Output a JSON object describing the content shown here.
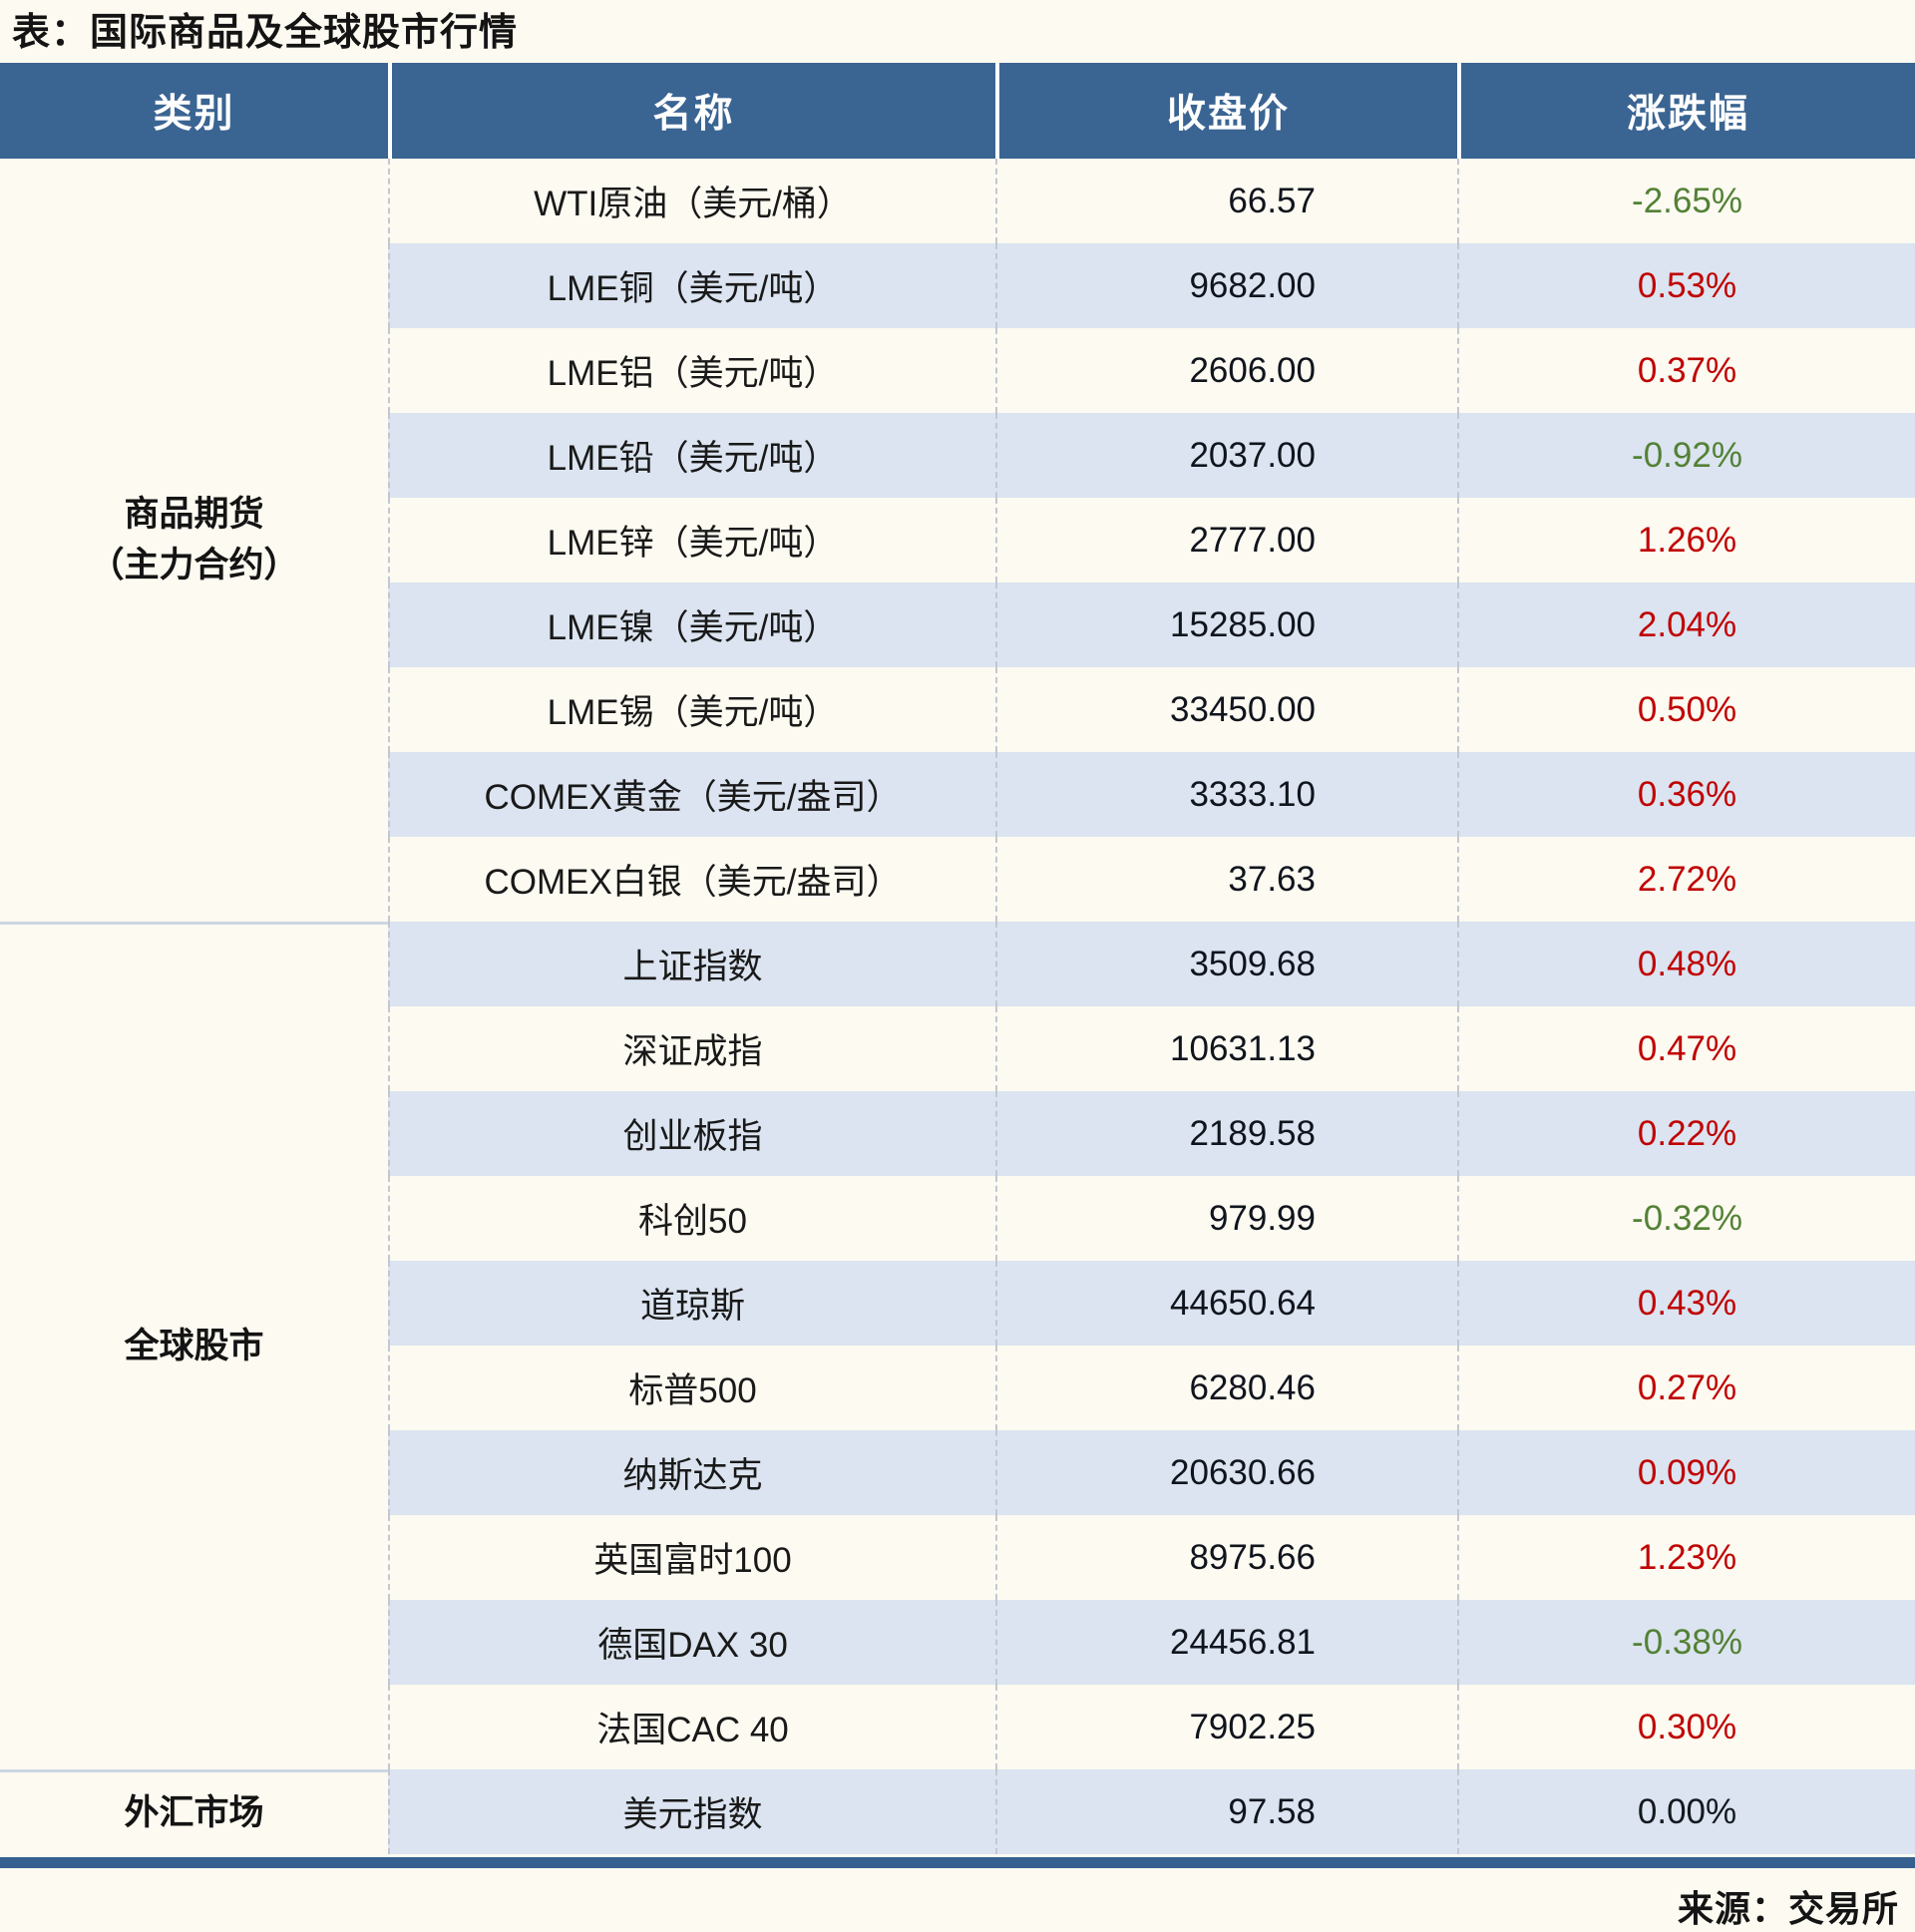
{
  "page_title": "表：国际商品及全球股市行情",
  "source_note": "来源：交易所",
  "colors": {
    "up_red": "#C00000",
    "down_green": "#538135",
    "flat_black": "#15181f",
    "header_bg": "#3A6492",
    "stripe_bg": "#DBE4F0",
    "bottom_rule": "#35608F"
  },
  "chart_data": {
    "type": "table",
    "title": "表：国际商品及全球股市行情",
    "columns": [
      "类别",
      "名称",
      "收盘价",
      "涨跌幅"
    ],
    "sections": [
      {
        "category_lines": [
          "商品期货",
          "（主力合约）"
        ],
        "rows": [
          {
            "name": "WTI原油（美元/桶）",
            "close": "66.57",
            "change": "-2.65%",
            "trend": "down"
          },
          {
            "name": "LME铜（美元/吨）",
            "close": "9682.00",
            "change": "0.53%",
            "trend": "up"
          },
          {
            "name": "LME铝（美元/吨）",
            "close": "2606.00",
            "change": "0.37%",
            "trend": "up"
          },
          {
            "name": "LME铅（美元/吨）",
            "close": "2037.00",
            "change": "-0.92%",
            "trend": "down"
          },
          {
            "name": "LME锌（美元/吨）",
            "close": "2777.00",
            "change": "1.26%",
            "trend": "up"
          },
          {
            "name": "LME镍（美元/吨）",
            "close": "15285.00",
            "change": "2.04%",
            "trend": "up"
          },
          {
            "name": "LME锡（美元/吨）",
            "close": "33450.00",
            "change": "0.50%",
            "trend": "up"
          },
          {
            "name": "COMEX黄金（美元/盎司）",
            "close": "3333.10",
            "change": "0.36%",
            "trend": "up"
          },
          {
            "name": "COMEX白银（美元/盎司）",
            "close": "37.63",
            "change": "2.72%",
            "trend": "up"
          }
        ]
      },
      {
        "category_lines": [
          "全球股市"
        ],
        "rows": [
          {
            "name": "上证指数",
            "close": "3509.68",
            "change": "0.48%",
            "trend": "up"
          },
          {
            "name": "深证成指",
            "close": "10631.13",
            "change": "0.47%",
            "trend": "up"
          },
          {
            "name": "创业板指",
            "close": "2189.58",
            "change": "0.22%",
            "trend": "up"
          },
          {
            "name": "科创50",
            "close": "979.99",
            "change": "-0.32%",
            "trend": "down"
          },
          {
            "name": "道琼斯",
            "close": "44650.64",
            "change": "0.43%",
            "trend": "up"
          },
          {
            "name": "标普500",
            "close": "6280.46",
            "change": "0.27%",
            "trend": "up"
          },
          {
            "name": "纳斯达克",
            "close": "20630.66",
            "change": "0.09%",
            "trend": "up"
          },
          {
            "name": "英国富时100",
            "close": "8975.66",
            "change": "1.23%",
            "trend": "up"
          },
          {
            "name": "德国DAX 30",
            "close": "24456.81",
            "change": "-0.38%",
            "trend": "down"
          },
          {
            "name": "法国CAC 40",
            "close": "7902.25",
            "change": "0.30%",
            "trend": "up"
          }
        ]
      },
      {
        "category_lines": [
          "外汇市场"
        ],
        "rows": [
          {
            "name": "美元指数",
            "close": "97.58",
            "change": "0.00%",
            "trend": "flat"
          }
        ]
      }
    ]
  }
}
